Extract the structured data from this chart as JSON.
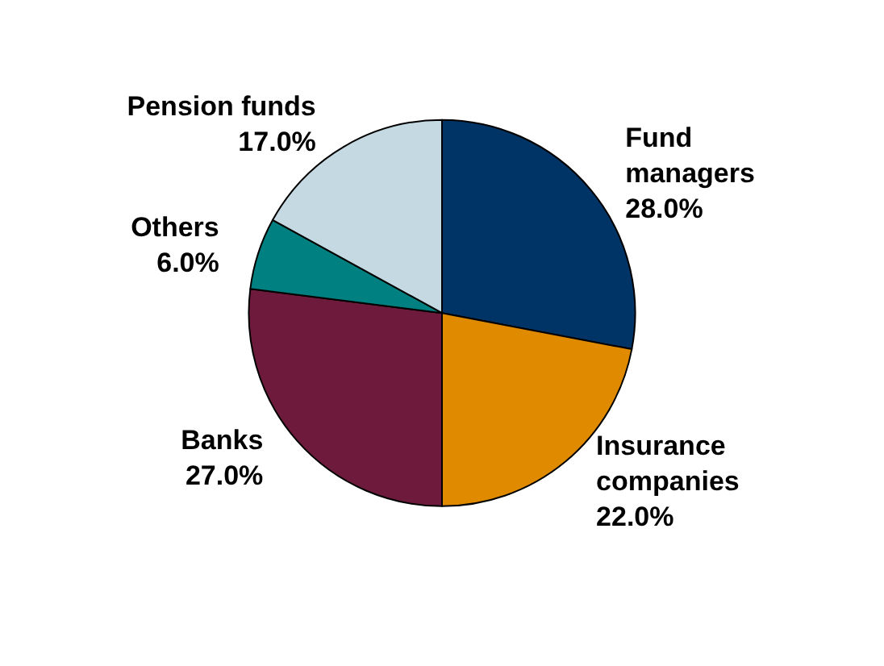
{
  "chart_data": {
    "type": "pie",
    "categories": [
      "Fund managers",
      "Insurance companies",
      "Banks",
      "Others",
      "Pension funds"
    ],
    "values": [
      28,
      22,
      27,
      6,
      17
    ],
    "colors": [
      "#003366",
      "#e08a00",
      "#6e1a3c",
      "#008080",
      "#c5d9e3"
    ],
    "value_labels": [
      "28.0%",
      "22.0%",
      "27.0%",
      "6.0%",
      "17.0%"
    ]
  }
}
